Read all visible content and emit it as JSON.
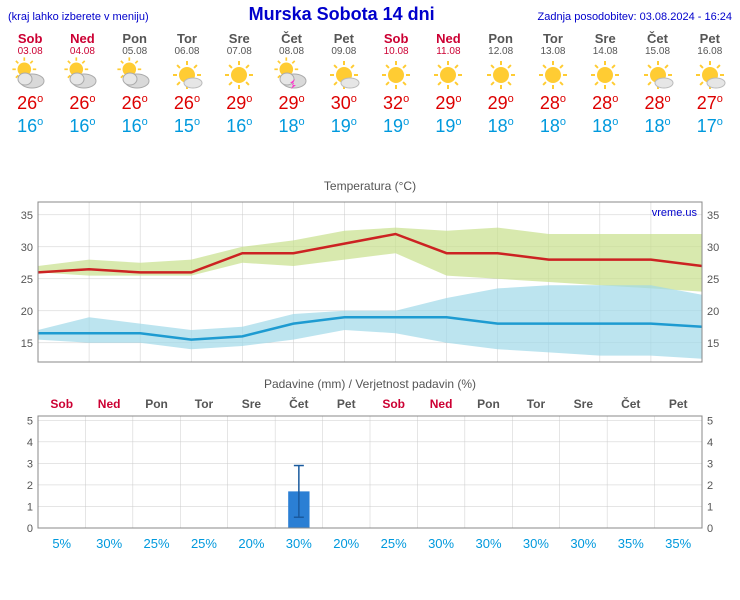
{
  "header": {
    "menu_hint": "(kraj lahko izberete v meniju)",
    "title": "Murska Sobota 14 dni",
    "updated": "Zadnja posodobitev: 03.08.2024 - 16:24"
  },
  "days": [
    {
      "name": "Sob",
      "date": "03.08",
      "weekend": true,
      "icon": "partly",
      "high": 26,
      "low": 16,
      "precip_mm": 0,
      "precip_err": 0,
      "precip_prob": "5%"
    },
    {
      "name": "Ned",
      "date": "04.08",
      "weekend": true,
      "icon": "partly",
      "high": 26,
      "low": 16,
      "precip_mm": 0,
      "precip_err": 0,
      "precip_prob": "30%"
    },
    {
      "name": "Pon",
      "date": "05.08",
      "weekend": false,
      "icon": "partly",
      "high": 26,
      "low": 16,
      "precip_mm": 0,
      "precip_err": 0,
      "precip_prob": "25%"
    },
    {
      "name": "Tor",
      "date": "06.08",
      "weekend": false,
      "icon": "mostly-sunny",
      "high": 26,
      "low": 15,
      "precip_mm": 0,
      "precip_err": 0,
      "precip_prob": "25%"
    },
    {
      "name": "Sre",
      "date": "07.08",
      "weekend": false,
      "icon": "sunny",
      "high": 29,
      "low": 16,
      "precip_mm": 0,
      "precip_err": 0,
      "precip_prob": "20%"
    },
    {
      "name": "Čet",
      "date": "08.08",
      "weekend": false,
      "icon": "storm",
      "high": 29,
      "low": 18,
      "precip_mm": 1.7,
      "precip_err": 1.2,
      "precip_prob": "30%"
    },
    {
      "name": "Pet",
      "date": "09.08",
      "weekend": false,
      "icon": "mostly-sunny",
      "high": 30,
      "low": 19,
      "precip_mm": 0,
      "precip_err": 0,
      "precip_prob": "20%"
    },
    {
      "name": "Sob",
      "date": "10.08",
      "weekend": true,
      "icon": "sunny",
      "high": 32,
      "low": 19,
      "precip_mm": 0,
      "precip_err": 0,
      "precip_prob": "25%"
    },
    {
      "name": "Ned",
      "date": "11.08",
      "weekend": true,
      "icon": "sunny",
      "high": 29,
      "low": 19,
      "precip_mm": 0,
      "precip_err": 0,
      "precip_prob": "30%"
    },
    {
      "name": "Pon",
      "date": "12.08",
      "weekend": false,
      "icon": "sunny",
      "high": 29,
      "low": 18,
      "precip_mm": 0,
      "precip_err": 0,
      "precip_prob": "30%"
    },
    {
      "name": "Tor",
      "date": "13.08",
      "weekend": false,
      "icon": "sunny",
      "high": 28,
      "low": 18,
      "precip_mm": 0,
      "precip_err": 0,
      "precip_prob": "30%"
    },
    {
      "name": "Sre",
      "date": "14.08",
      "weekend": false,
      "icon": "sunny",
      "high": 28,
      "low": 18,
      "precip_mm": 0,
      "precip_err": 0,
      "precip_prob": "30%"
    },
    {
      "name": "Čet",
      "date": "15.08",
      "weekend": false,
      "icon": "mostly-sunny",
      "high": 28,
      "low": 18,
      "precip_mm": 0,
      "precip_err": 0,
      "precip_prob": "35%"
    },
    {
      "name": "Pet",
      "date": "16.08",
      "weekend": false,
      "icon": "mostly-sunny",
      "high": 27,
      "low": 17,
      "precip_mm": 0,
      "precip_err": 0,
      "precip_prob": "35%"
    }
  ],
  "temp_chart": {
    "title": "Temperatura (°C)",
    "watermark": "vreme.us",
    "ylim": [
      12,
      37
    ],
    "yticks": [
      15,
      20,
      25,
      30,
      35
    ],
    "high_band_upper": [
      27,
      28,
      27.5,
      28,
      30,
      31,
      32.5,
      33,
      32.5,
      33,
      32,
      32,
      32,
      32
    ],
    "high_band_lower": [
      26,
      25.5,
      25.5,
      25.5,
      27.5,
      27,
      28,
      29,
      25.5,
      25,
      24.5,
      24,
      23.5,
      23
    ],
    "low_band_upper": [
      17,
      19,
      18,
      17,
      17.5,
      19.5,
      20,
      20,
      22,
      23.5,
      24,
      24,
      24,
      22.5
    ],
    "low_band_lower": [
      15.5,
      15,
      15,
      14,
      14.5,
      15.5,
      17,
      16.5,
      15,
      14,
      13.5,
      13,
      13,
      12.5
    ],
    "high_line": [
      26,
      26.5,
      26,
      26,
      29,
      29,
      30.5,
      32,
      29,
      29,
      28,
      28,
      28,
      27
    ],
    "low_line": [
      16.5,
      16.5,
      16.5,
      15.5,
      16,
      18,
      19,
      19,
      19,
      18,
      18,
      18,
      18,
      17.5
    ],
    "colors": {
      "high_fill": "#c7e08b",
      "high_line": "#cc2222",
      "low_fill": "#9fd9e8",
      "low_line": "#1e9bd1",
      "grid": "#cccccc",
      "axis": "#555555",
      "bg": "#ffffff"
    },
    "line_width": 2.5
  },
  "precip_chart": {
    "title": "Padavine (mm) / Verjetnost padavin (%)",
    "ylim": [
      0,
      5.2
    ],
    "yticks": [
      0,
      1,
      2,
      3,
      4,
      5
    ],
    "bar_color": "#2b7fd4",
    "err_color": "#1a5a9e",
    "grid": "#cccccc",
    "axis": "#555555",
    "weekend_color": "#cc0033",
    "weekday_color": "#555555",
    "bar_width": 0.45
  }
}
